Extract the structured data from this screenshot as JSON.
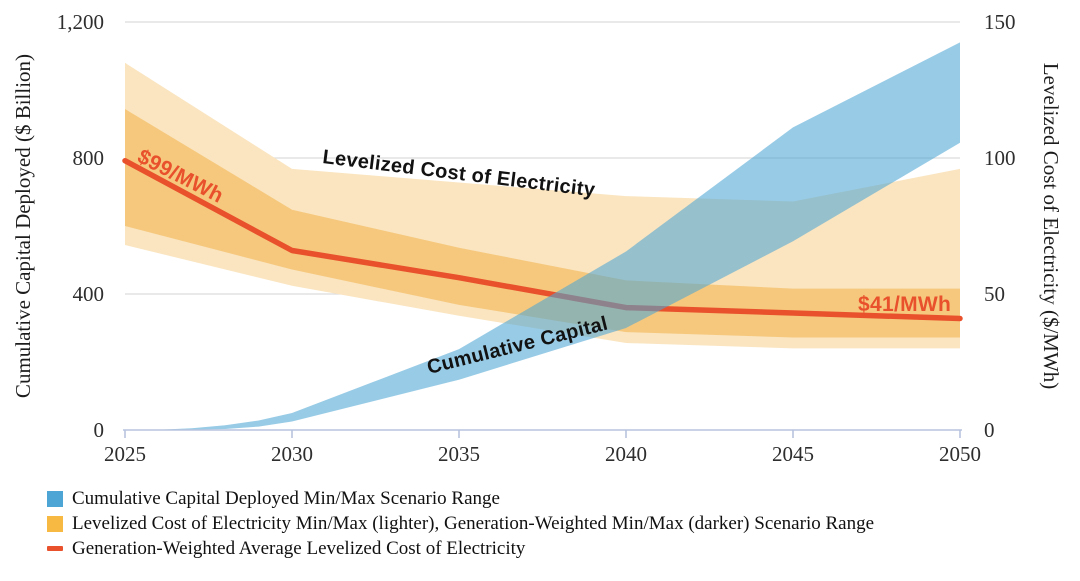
{
  "chart_data": {
    "type": "area",
    "title": "",
    "xlim": [
      2025,
      2050
    ],
    "x_tick_years": [
      2025,
      2030,
      2035,
      2040,
      2045,
      2050
    ],
    "x_tick_labels": [
      "2025",
      "2030",
      "2035",
      "2040",
      "2045",
      "2050"
    ],
    "grid": "horizontal",
    "legend_position": "bottom-left",
    "y_left": {
      "title": "Cumulative Capital Deployed ($ Billion)",
      "lim": [
        0,
        1200
      ],
      "ticks": [
        0,
        400,
        800,
        1200
      ],
      "tick_labels": [
        "0",
        "400",
        "800",
        "1,200"
      ]
    },
    "y_right": {
      "title": "Levelized Cost of Electricity ($/MWh)",
      "lim": [
        0,
        150
      ],
      "ticks": [
        0,
        50,
        100,
        150
      ],
      "tick_labels": [
        "0",
        "50",
        "100",
        "150"
      ]
    },
    "colors": {
      "grid": "#DCDCDC",
      "axis": "#B7C3DE",
      "tick_text": "#2E2E2E",
      "capital_band": "#4DA6D4",
      "lcoe_light_band": "#FAE5C0",
      "lcoe_dark_band": "#F6C87D",
      "lcoe_avg_line": "#E8512C"
    },
    "series": [
      {
        "name": "Levelized Cost of Electricity Min/Max (lighter)",
        "type": "band",
        "axis": "right",
        "color": "#FAE5C0",
        "opacity": 1,
        "x": [
          2025,
          2030,
          2035,
          2040,
          2045,
          2050
        ],
        "min": [
          68,
          53,
          42,
          32,
          30,
          30
        ],
        "max": [
          135,
          96,
          91,
          86,
          84,
          96
        ]
      },
      {
        "name": "Generation-Weighted Min/Max (darker)",
        "type": "band",
        "axis": "right",
        "color": "#F6C87D",
        "opacity": 1,
        "x": [
          2025,
          2030,
          2035,
          2040,
          2045,
          2050
        ],
        "min": [
          75,
          59,
          46,
          36,
          34,
          34
        ],
        "max": [
          118,
          81,
          67,
          55,
          52,
          52
        ]
      },
      {
        "name": "Generation-Weighted Average Levelized Cost of Electricity",
        "type": "line",
        "axis": "right",
        "color": "#E8512C",
        "width": 5.5,
        "x": [
          2025,
          2030,
          2035,
          2040,
          2045,
          2050
        ],
        "values": [
          99,
          66,
          56,
          45,
          43,
          41
        ]
      },
      {
        "name": "Cumulative Capital Deployed Min/Max Scenario Range",
        "type": "band",
        "axis": "left",
        "color": "#4DA6D4",
        "opacity": 0.58,
        "x": [
          2025,
          2026,
          2027,
          2028,
          2029,
          2030,
          2035,
          2040,
          2045,
          2050
        ],
        "min": [
          0,
          0,
          1,
          3,
          10,
          25,
          148,
          300,
          555,
          845
        ],
        "max": [
          0,
          1,
          5,
          14,
          28,
          50,
          238,
          525,
          890,
          1140
        ]
      }
    ],
    "annotations": [
      {
        "text": "$99/MWh",
        "color": "#E8512C"
      },
      {
        "text": "Levelized Cost of Electricity",
        "color": "#121212"
      },
      {
        "text": "Cumulative Capital",
        "color": "#121212"
      },
      {
        "text": "$41/MWh",
        "color": "#E8512C"
      }
    ]
  },
  "legend": {
    "items": [
      {
        "swatch": "square",
        "color": "#4DA5D6",
        "label": "Cumulative Capital Deployed Min/Max Scenario Range"
      },
      {
        "swatch": "square",
        "color": "#F8B943",
        "label": "Levelized Cost of Electricity Min/Max (lighter), Generation-Weighted Min/Max (darker) Scenario Range"
      },
      {
        "swatch": "dash",
        "color": "#E8512C",
        "label": "Generation-Weighted Average Levelized Cost of Electricity"
      }
    ]
  }
}
